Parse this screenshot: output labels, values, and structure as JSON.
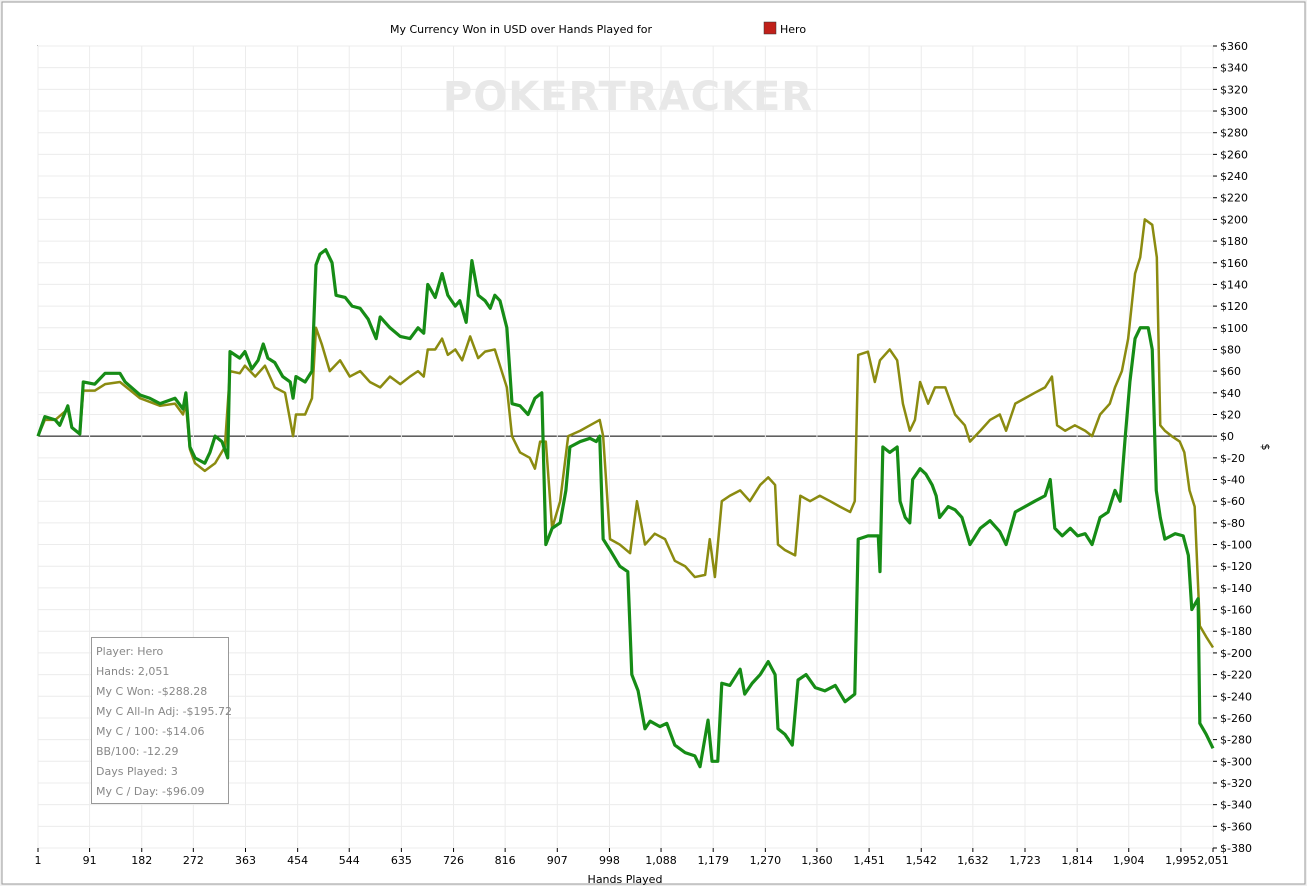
{
  "chart_data": {
    "type": "line",
    "title": "My Currency Won in USD over Hands Played for",
    "title_player": "Hero",
    "watermark": "POKERTRACKER",
    "x_label": "Hands Played",
    "y_label": "$",
    "xlim": [
      1,
      2051
    ],
    "xticks": [
      1,
      91,
      182,
      272,
      363,
      454,
      544,
      635,
      726,
      816,
      907,
      998,
      {
        "value": 1088,
        "label": "1,088"
      },
      {
        "value": 1179,
        "label": "1,179"
      },
      {
        "value": 1270,
        "label": "1,270"
      },
      {
        "value": 1360,
        "label": "1,360"
      },
      {
        "value": 1451,
        "label": "1,451"
      },
      {
        "value": 1542,
        "label": "1,542"
      },
      {
        "value": 1632,
        "label": "1,632"
      },
      {
        "value": 1723,
        "label": "1,723"
      },
      {
        "value": 1814,
        "label": "1,814"
      },
      {
        "value": 1904,
        "label": "1,904"
      },
      {
        "value": 1995,
        "label": "1,995"
      },
      {
        "value": 2051,
        "label": "2,051"
      }
    ],
    "ylim": [
      -380,
      360
    ],
    "yticks": [
      {
        "value": 360,
        "label": "$360"
      },
      {
        "value": 340,
        "label": "$340"
      },
      {
        "value": 320,
        "label": "$320"
      },
      {
        "value": 300,
        "label": "$300"
      },
      {
        "value": 280,
        "label": "$280"
      },
      {
        "value": 260,
        "label": "$260"
      },
      {
        "value": 240,
        "label": "$240"
      },
      {
        "value": 220,
        "label": "$220"
      },
      {
        "value": 200,
        "label": "$200"
      },
      {
        "value": 180,
        "label": "$180"
      },
      {
        "value": 160,
        "label": "$160"
      },
      {
        "value": 140,
        "label": "$140"
      },
      {
        "value": 120,
        "label": "$120"
      },
      {
        "value": 100,
        "label": "$100"
      },
      {
        "value": 80,
        "label": "$80"
      },
      {
        "value": 60,
        "label": "$60"
      },
      {
        "value": 40,
        "label": "$40"
      },
      {
        "value": 20,
        "label": "$20"
      },
      {
        "value": 0,
        "label": "$0"
      },
      {
        "value": -20,
        "label": "$-20"
      },
      {
        "value": -40,
        "label": "$-40"
      },
      {
        "value": -60,
        "label": "$-60"
      },
      {
        "value": -80,
        "label": "$-80"
      },
      {
        "value": -100,
        "label": "$-100"
      },
      {
        "value": -120,
        "label": "$-120"
      },
      {
        "value": -140,
        "label": "$-140"
      },
      {
        "value": -160,
        "label": "$-160"
      },
      {
        "value": -180,
        "label": "$-180"
      },
      {
        "value": -200,
        "label": "$-200"
      },
      {
        "value": -220,
        "label": "$-220"
      },
      {
        "value": -240,
        "label": "$-240"
      },
      {
        "value": -260,
        "label": "$-260"
      },
      {
        "value": -280,
        "label": "$-280"
      },
      {
        "value": -300,
        "label": "$-300"
      },
      {
        "value": -320,
        "label": "$-320"
      },
      {
        "value": -340,
        "label": "$-340"
      },
      {
        "value": -360,
        "label": "$-360"
      },
      {
        "value": -380,
        "label": "$-380"
      }
    ],
    "grid": true,
    "series": [
      {
        "color": "#8b8b10",
        "width": 2.5,
        "x": [
          1,
          13,
          31,
          53,
          60,
          74,
          80,
          100,
          118,
          144,
          179,
          214,
          240,
          254,
          259,
          266,
          275,
          292,
          310,
          327,
          336,
          353,
          362,
          380,
          397,
          414,
          432,
          446,
          451,
          467,
          479,
          486,
          496,
          510,
          528,
          545,
          563,
          580,
          598,
          615,
          633,
          650,
          664,
          674,
          681,
          694,
          706,
          716,
          729,
          741,
          755,
          769,
          781,
          798,
          819,
          828,
          842,
          859,
          868,
          877,
          887,
          898,
          912,
          926,
          947,
          964,
          981,
          987,
          999,
          1016,
          1034,
          1046,
          1060,
          1077,
          1095,
          1112,
          1130,
          1147,
          1165,
          1173,
          1182,
          1194,
          1208,
          1226,
          1243,
          1261,
          1275,
          1287,
          1292,
          1304,
          1322,
          1331,
          1348,
          1365,
          1383,
          1400,
          1418,
          1426,
          1432,
          1449,
          1461,
          1470,
          1487,
          1500,
          1510,
          1522,
          1531,
          1540,
          1554,
          1566,
          1584,
          1601,
          1618,
          1627,
          1645,
          1662,
          1679,
          1690,
          1706,
          1723,
          1740,
          1758,
          1770,
          1779,
          1793,
          1810,
          1828,
          1840,
          1854,
          1871,
          1880,
          1892,
          1903,
          1915,
          1924,
          1932,
          1945,
          1953,
          1959,
          1967,
          1979,
          1993,
          2001,
          2010,
          2019,
          2028,
          2039,
          2051
        ],
        "values": [
          0,
          15,
          15,
          25,
          8,
          2,
          42,
          42,
          48,
          50,
          35,
          28,
          30,
          20,
          30,
          -12,
          -25,
          -32,
          -25,
          -10,
          60,
          58,
          65,
          55,
          65,
          45,
          40,
          0,
          20,
          20,
          35,
          100,
          85,
          60,
          70,
          55,
          60,
          50,
          45,
          55,
          48,
          55,
          60,
          55,
          80,
          80,
          90,
          75,
          80,
          70,
          92,
          72,
          78,
          80,
          45,
          0,
          -15,
          -20,
          -30,
          -5,
          -5,
          -85,
          -60,
          0,
          5,
          10,
          15,
          0,
          -95,
          -100,
          -108,
          -60,
          -100,
          -90,
          -95,
          -115,
          -120,
          -130,
          -128,
          -95,
          -130,
          -60,
          -55,
          -50,
          -60,
          -45,
          -38,
          -45,
          -100,
          -105,
          -110,
          -55,
          -60,
          -55,
          -60,
          -65,
          -70,
          -60,
          75,
          78,
          50,
          70,
          80,
          70,
          30,
          5,
          15,
          50,
          30,
          45,
          45,
          20,
          10,
          -5,
          5,
          15,
          20,
          5,
          30,
          35,
          40,
          45,
          55,
          10,
          5,
          10,
          5,
          0,
          20,
          30,
          45,
          60,
          90,
          150,
          165,
          200,
          195,
          165,
          10,
          5,
          0,
          -5,
          -15,
          -50,
          -65,
          -175,
          -185,
          -195
        ]
      },
      {
        "color": "#168c16",
        "width": 3.2,
        "x": [
          1,
          13,
          31,
          39,
          53,
          60,
          74,
          80,
          100,
          118,
          144,
          153,
          179,
          196,
          214,
          240,
          254,
          259,
          266,
          275,
          292,
          301,
          310,
          322,
          332,
          336,
          353,
          362,
          374,
          385,
          394,
          402,
          414,
          428,
          441,
          446,
          451,
          467,
          479,
          486,
          493,
          503,
          514,
          521,
          537,
          549,
          563,
          577,
          591,
          598,
          615,
          633,
          650,
          664,
          674,
          681,
          694,
          706,
          716,
          729,
          737,
          748,
          758,
          769,
          781,
          790,
          798,
          807,
          819,
          828,
          842,
          856,
          868,
          880,
          887,
          898,
          912,
          922,
          929,
          947,
          964,
          975,
          981,
          987,
          999,
          1016,
          1030,
          1037,
          1048,
          1060,
          1069,
          1086,
          1098,
          1112,
          1130,
          1147,
          1156,
          1170,
          1177,
          1187,
          1194,
          1208,
          1226,
          1234,
          1247,
          1261,
          1275,
          1287,
          1292,
          1304,
          1317,
          1327,
          1341,
          1357,
          1374,
          1392,
          1409,
          1426,
          1432,
          1449,
          1467,
          1470,
          1475,
          1487,
          1500,
          1505,
          1514,
          1522,
          1527,
          1540,
          1550,
          1561,
          1568,
          1574,
          1589,
          1601,
          1613,
          1627,
          1645,
          1662,
          1679,
          1690,
          1706,
          1723,
          1740,
          1758,
          1767,
          1775,
          1788,
          1802,
          1815,
          1828,
          1840,
          1854,
          1868,
          1880,
          1889,
          1898,
          1906,
          1915,
          1924,
          1938,
          1945,
          1952,
          1959,
          1967,
          1985,
          1999,
          2008,
          2014,
          2025,
          2028,
          2039,
          2051
        ],
        "values": [
          0,
          18,
          15,
          10,
          28,
          8,
          2,
          50,
          48,
          58,
          58,
          50,
          38,
          35,
          30,
          35,
          25,
          40,
          -10,
          -20,
          -25,
          -15,
          0,
          -5,
          -20,
          78,
          72,
          78,
          62,
          70,
          85,
          72,
          68,
          55,
          50,
          35,
          55,
          50,
          60,
          158,
          168,
          172,
          160,
          130,
          128,
          120,
          118,
          108,
          90,
          110,
          100,
          92,
          90,
          100,
          95,
          140,
          128,
          150,
          130,
          120,
          125,
          105,
          162,
          130,
          125,
          118,
          130,
          125,
          100,
          30,
          28,
          20,
          35,
          40,
          -100,
          -85,
          -80,
          -50,
          -10,
          -5,
          -2,
          -5,
          0,
          -95,
          -105,
          -120,
          -125,
          -220,
          -235,
          -270,
          -263,
          -268,
          -265,
          -285,
          -292,
          -295,
          -305,
          -262,
          -300,
          -300,
          -228,
          -230,
          -215,
          -238,
          -228,
          -220,
          -208,
          -220,
          -270,
          -275,
          -285,
          -225,
          -220,
          -232,
          -235,
          -230,
          -245,
          -238,
          -95,
          -92,
          -92,
          -125,
          -10,
          -15,
          -10,
          -60,
          -75,
          -80,
          -40,
          -30,
          -35,
          -45,
          -55,
          -75,
          -65,
          -68,
          -75,
          -100,
          -85,
          -78,
          -88,
          -100,
          -70,
          -65,
          -60,
          -55,
          -40,
          -85,
          -92,
          -85,
          -92,
          -90,
          -100,
          -75,
          -70,
          -50,
          -60,
          0,
          50,
          90,
          100,
          100,
          80,
          -50,
          -75,
          -95,
          -90,
          -92,
          -110,
          -160,
          -150,
          -265,
          -275,
          -288
        ]
      }
    ],
    "stats_box": [
      "Player: Hero",
      "Hands: 2,051",
      "My C Won: -$288.28",
      "My C All-In Adj: -$195.72",
      "My C / 100: -$14.06",
      "BB/100: -12.29",
      "Days Played: 3",
      "My C / Day: -$96.09"
    ]
  }
}
